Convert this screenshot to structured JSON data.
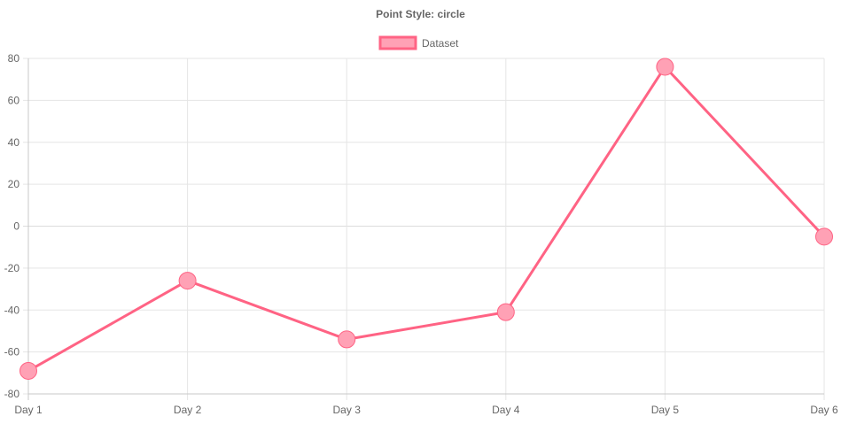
{
  "chart_data": {
    "type": "line",
    "title": "Point Style: circle",
    "xlabel": "",
    "ylabel": "",
    "categories": [
      "Day 1",
      "Day 2",
      "Day 3",
      "Day 4",
      "Day 5",
      "Day 6"
    ],
    "series": [
      {
        "name": "Dataset",
        "values": [
          -69,
          -26,
          -54,
          -41,
          76,
          -5
        ],
        "border_color": "#ff6384",
        "fill_color": "#ffa1b5",
        "point_style": "circle"
      }
    ],
    "ylim": [
      -80,
      80
    ],
    "y_ticks": [
      80,
      60,
      40,
      20,
      0,
      -20,
      -40,
      -60,
      -80
    ],
    "grid": true,
    "legend_position": "top"
  },
  "colors": {
    "grid": "#e5e5e5",
    "axis": "#c8c8c8",
    "text": "#666666"
  }
}
